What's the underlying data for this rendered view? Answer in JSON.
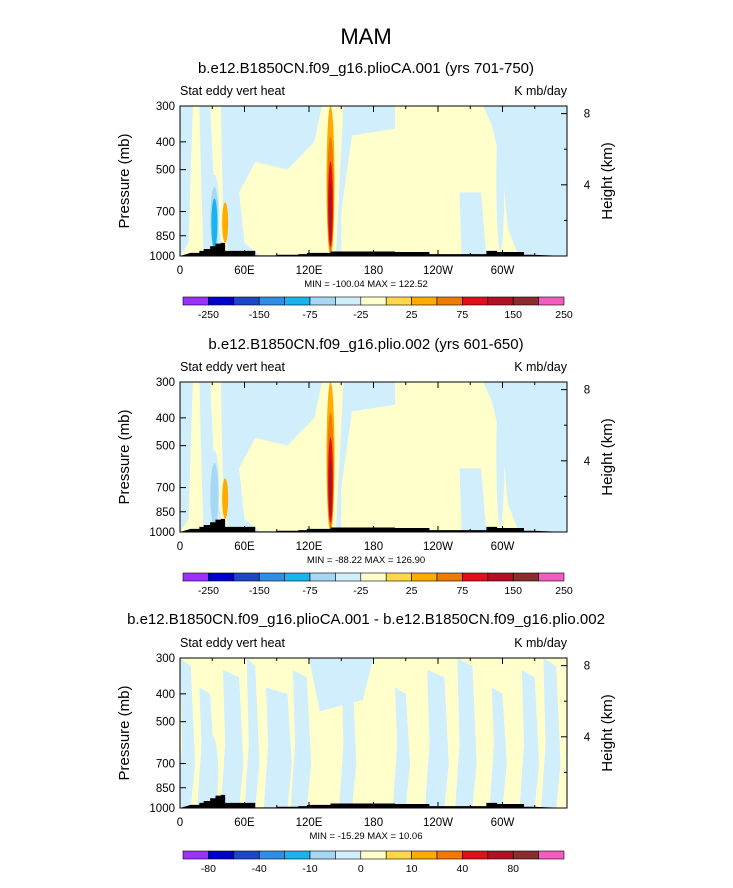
{
  "figure": {
    "title": "MAM"
  },
  "chart_data": [
    {
      "type": "heatmap",
      "title": "b.e12.B1850CN.f09_g16.plioCA.001 (yrs 701-750)",
      "left_string": "Stat eddy vert heat",
      "right_string": "K mb/day",
      "ylabel": "Pressure (mb)",
      "ylabel_right": "Height (km)",
      "x_ticks": [
        "0",
        "60E",
        "120E",
        "180",
        "120W",
        "60W"
      ],
      "x_tick_values": [
        0,
        60,
        120,
        180,
        240,
        300
      ],
      "xlim": [
        0,
        360
      ],
      "y_ticks": [
        "300",
        "400",
        "500",
        "700",
        "850",
        "1000"
      ],
      "y_tick_values": [
        300,
        400,
        500,
        700,
        850,
        1000
      ],
      "ylim": [
        1000,
        300
      ],
      "y_scale": "log",
      "height_ticks": [
        "8",
        "4"
      ],
      "height_tick_values": [
        8,
        4
      ],
      "stats": "MIN = -100.04   MAX = 122.52",
      "colorbar_labels": [
        "-250",
        "-150",
        "-75",
        "-25",
        "25",
        "75",
        "150",
        "250"
      ],
      "features": [
        {
          "lon": 32,
          "p_top": 520,
          "p_bottom": 980,
          "value": -75,
          "width": 5
        },
        {
          "lon": 42,
          "p_top": 650,
          "p_bottom": 900,
          "value": 40,
          "width": 3
        },
        {
          "lon": 140,
          "p_top": 300,
          "p_bottom": 1000,
          "value": 115,
          "width": 4
        },
        {
          "lon": 298,
          "p_top": 300,
          "p_bottom": 960,
          "value": -40,
          "width": 4
        }
      ]
    },
    {
      "type": "heatmap",
      "title": "b.e12.B1850CN.f09_g16.plio.002 (yrs 601-650)",
      "left_string": "Stat eddy vert heat",
      "right_string": "K mb/day",
      "ylabel": "Pressure (mb)",
      "ylabel_right": "Height (km)",
      "x_ticks": [
        "0",
        "60E",
        "120E",
        "180",
        "120W",
        "60W"
      ],
      "x_tick_values": [
        0,
        60,
        120,
        180,
        240,
        300
      ],
      "xlim": [
        0,
        360
      ],
      "y_ticks": [
        "300",
        "400",
        "500",
        "700",
        "850",
        "1000"
      ],
      "y_tick_values": [
        300,
        400,
        500,
        700,
        850,
        1000
      ],
      "ylim": [
        1000,
        300
      ],
      "y_scale": "log",
      "height_ticks": [
        "8",
        "4"
      ],
      "height_tick_values": [
        8,
        4
      ],
      "stats": "MIN = -88.22   MAX = 126.90",
      "colorbar_labels": [
        "-250",
        "-150",
        "-75",
        "-25",
        "25",
        "75",
        "150",
        "250"
      ],
      "features": [
        {
          "lon": 32,
          "p_top": 520,
          "p_bottom": 980,
          "value": -70,
          "width": 5
        },
        {
          "lon": 42,
          "p_top": 650,
          "p_bottom": 900,
          "value": 35,
          "width": 3
        },
        {
          "lon": 140,
          "p_top": 300,
          "p_bottom": 1000,
          "value": 120,
          "width": 4
        },
        {
          "lon": 298,
          "p_top": 300,
          "p_bottom": 960,
          "value": -40,
          "width": 4
        }
      ]
    },
    {
      "type": "heatmap",
      "title": "b.e12.B1850CN.f09_g16.plioCA.001 - b.e12.B1850CN.f09_g16.plio.002",
      "left_string": "Stat eddy vert heat",
      "right_string": "K mb/day",
      "ylabel": "Pressure (mb)",
      "ylabel_right": "Height (km)",
      "x_ticks": [
        "0",
        "60E",
        "120E",
        "180",
        "120W",
        "60W"
      ],
      "x_tick_values": [
        0,
        60,
        120,
        180,
        240,
        300
      ],
      "xlim": [
        0,
        360
      ],
      "y_ticks": [
        "300",
        "400",
        "500",
        "700",
        "850",
        "1000"
      ],
      "y_tick_values": [
        300,
        400,
        500,
        700,
        850,
        1000
      ],
      "ylim": [
        1000,
        300
      ],
      "y_scale": "log",
      "height_ticks": [
        "8",
        "4"
      ],
      "height_tick_values": [
        8,
        4
      ],
      "stats": "MIN = -15.29   MAX = 10.06",
      "colorbar_labels": [
        "-80",
        "-40",
        "-10",
        "0",
        "10",
        "40",
        "80"
      ],
      "features": [
        {
          "lon": 32,
          "p_top": 640,
          "p_bottom": 960,
          "value": 8,
          "width": 3
        },
        {
          "lon": 30,
          "p_top": 560,
          "p_bottom": 1000,
          "value": -4,
          "width": 6
        }
      ]
    }
  ],
  "colors": {
    "colorbar_12": [
      "#9b30ff",
      "#0000cd",
      "#1e46c8",
      "#2f8ee6",
      "#19b4f0",
      "#a6d7f5",
      "#d1eefc",
      "#ffffcc",
      "#ffd84a",
      "#ffab00",
      "#f07a00",
      "#e0101a",
      "#b11025",
      "#8b2d2d",
      "#f25cbe"
    ],
    "colorbar_3": [
      "#9b30ff",
      "#0000cd",
      "#1e46c8",
      "#2f8ee6",
      "#19b4f0",
      "#a6d7f5",
      "#d1eefc",
      "#ffffcc",
      "#ffd84a",
      "#ffab00",
      "#f07a00",
      "#e0101a",
      "#b11025",
      "#8b2d2d",
      "#f25cbe"
    ],
    "topography": "#000000"
  }
}
